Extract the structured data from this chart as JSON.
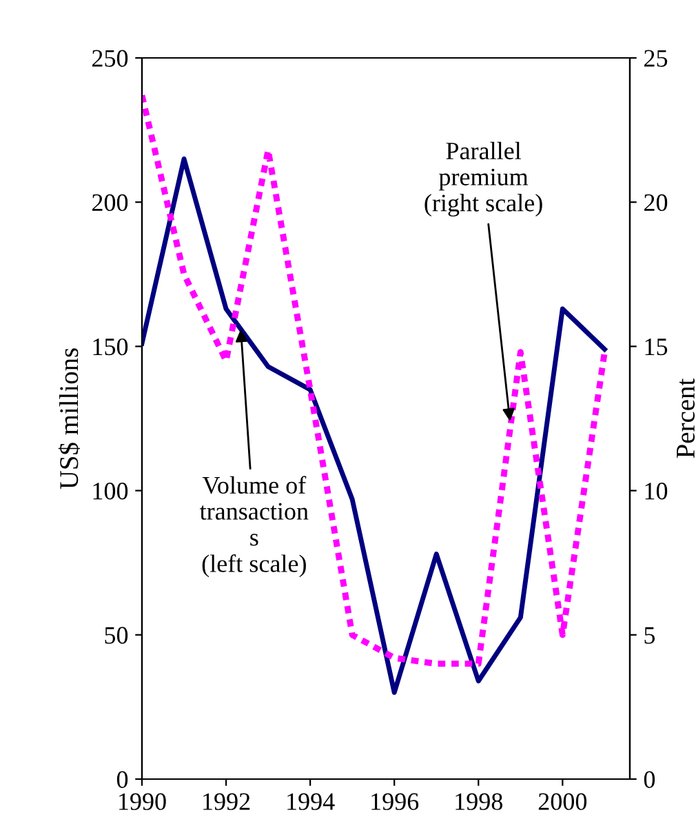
{
  "chart_data": {
    "type": "line",
    "ylabel": "US$ millions",
    "y2label": "Percent",
    "x": [
      1990,
      1991,
      1992,
      1993,
      1994,
      1995,
      1996,
      1997,
      1998,
      1999,
      2000,
      2001
    ],
    "series": [
      {
        "color": "#000080",
        "values": [
          151,
          215,
          163,
          143,
          135,
          97,
          30,
          78,
          34,
          56,
          163,
          149
        ],
        "line_style": "solid"
      },
      {
        "color": "#ff00ff",
        "axis": "y2",
        "values": [
          23.7,
          17.5,
          14.5,
          21.8,
          13.5,
          5,
          4.2,
          4,
          4,
          14.8,
          5,
          14.8
        ],
        "line_style": "dotted"
      }
    ],
    "xlim": [
      1990,
      2001.6
    ],
    "xticks": [
      1990,
      1992,
      1994,
      1996,
      1998,
      2000
    ],
    "ylim": [
      0,
      250
    ],
    "yticks": [
      0,
      50,
      100,
      150,
      200,
      250
    ],
    "y2lim": [
      0,
      25
    ],
    "y2ticks": [
      0,
      5,
      10,
      15,
      20,
      25
    ],
    "grid": false,
    "legend": false,
    "marker": "none",
    "annotations": [
      {
        "text": "Volume of\ntransaction\ns\n(left scale)",
        "x": 1992.35,
        "y": 156
      },
      {
        "text": "Parallel\npremium\n(right scale)",
        "x": 1998.75,
        "y": 124
      }
    ]
  }
}
